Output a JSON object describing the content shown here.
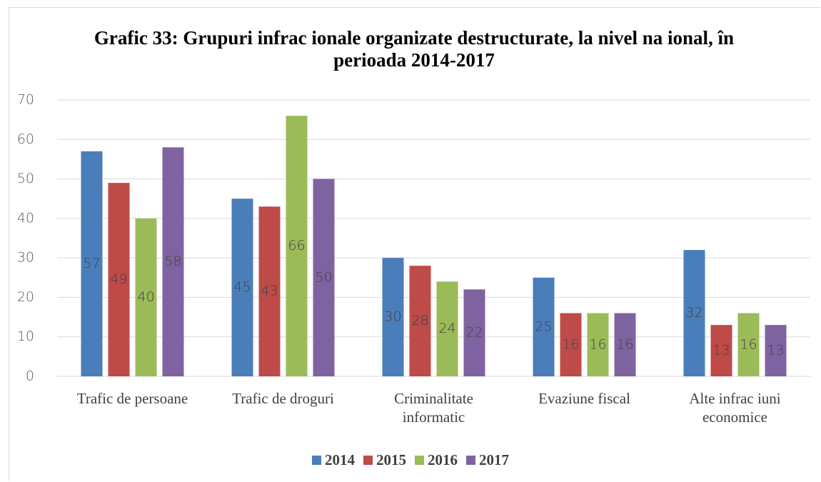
{
  "chart_data": {
    "type": "bar",
    "title": "Grafic 33: Grupuri infrac ionale organizate destructurate, la nivel na ional, în perioada 2014-2017",
    "categories": [
      "Trafic de persoane",
      "Trafic de droguri",
      "Criminalitate informatic",
      "Evaziune fiscal",
      "Alte infrac iuni economice"
    ],
    "series": [
      {
        "name": "2014",
        "color": "#4a7ebb",
        "values": [
          57,
          45,
          30,
          25,
          32
        ]
      },
      {
        "name": "2015",
        "color": "#be4b48",
        "values": [
          49,
          43,
          28,
          16,
          13
        ]
      },
      {
        "name": "2016",
        "color": "#9bbb59",
        "values": [
          40,
          66,
          24,
          16,
          16
        ]
      },
      {
        "name": "2017",
        "color": "#7f63a1",
        "values": [
          58,
          50,
          22,
          16,
          13
        ]
      }
    ],
    "ylim": [
      0,
      70
    ],
    "yticks": [
      0,
      10,
      20,
      30,
      40,
      50,
      60,
      70
    ],
    "grid": true,
    "legend": "bottom"
  }
}
